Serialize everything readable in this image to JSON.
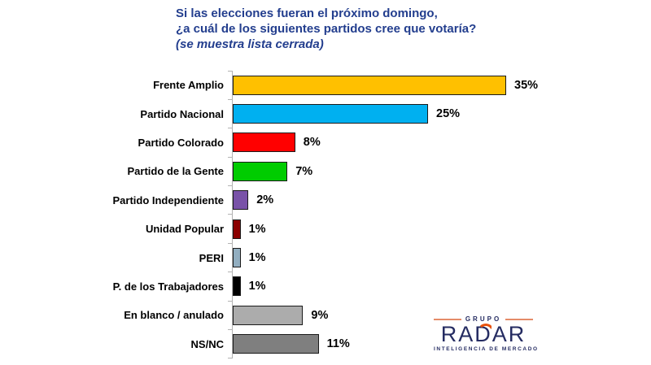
{
  "title": {
    "line1": "Si las elecciones fueran el próximo domingo,",
    "line2": "¿a cuál de los siguientes partidos cree que votaría?",
    "line3": "(se muestra lista cerrada)"
  },
  "chart_data": {
    "type": "bar",
    "orientation": "horizontal",
    "title": "Si las elecciones fueran el próximo domingo, ¿a cuál de los siguientes partidos cree que votaría? (se muestra lista cerrada)",
    "categories": [
      "Frente Amplio",
      "Partido Nacional",
      "Partido Colorado",
      "Partido de la Gente",
      "Partido Independiente",
      "Unidad Popular",
      "PERI",
      "P. de los Trabajadores",
      "En blanco / anulado",
      "NS/NC"
    ],
    "values": [
      35,
      25,
      8,
      7,
      2,
      1,
      1,
      1,
      9,
      11
    ],
    "value_labels": [
      "35%",
      "25%",
      "8%",
      "7%",
      "2%",
      "1%",
      "1%",
      "1%",
      "9%",
      "11%"
    ],
    "bar_colors": [
      "#FFC000",
      "#00B0F0",
      "#FF0000",
      "#00CC00",
      "#7952A8",
      "#8B0000",
      "#92AEC0",
      "#000000",
      "#ACACAC",
      "#7F7F7F"
    ],
    "bar_border_color": "#1a1a1a",
    "xlim": [
      0,
      36.5
    ],
    "grid": false,
    "legend": false,
    "axis_color": "#b3b3b3",
    "unit": "percent"
  },
  "logo": {
    "top_label": "GRUPO",
    "name": "RADAR",
    "subtitle": "INTELIGENCIA DE MERCADO",
    "navy_color": "#252C62",
    "orange_color": "#E8500A"
  },
  "style": {
    "title_color": "#233E8E",
    "background_color": "#FFFFFF",
    "text_color": "#000000"
  }
}
